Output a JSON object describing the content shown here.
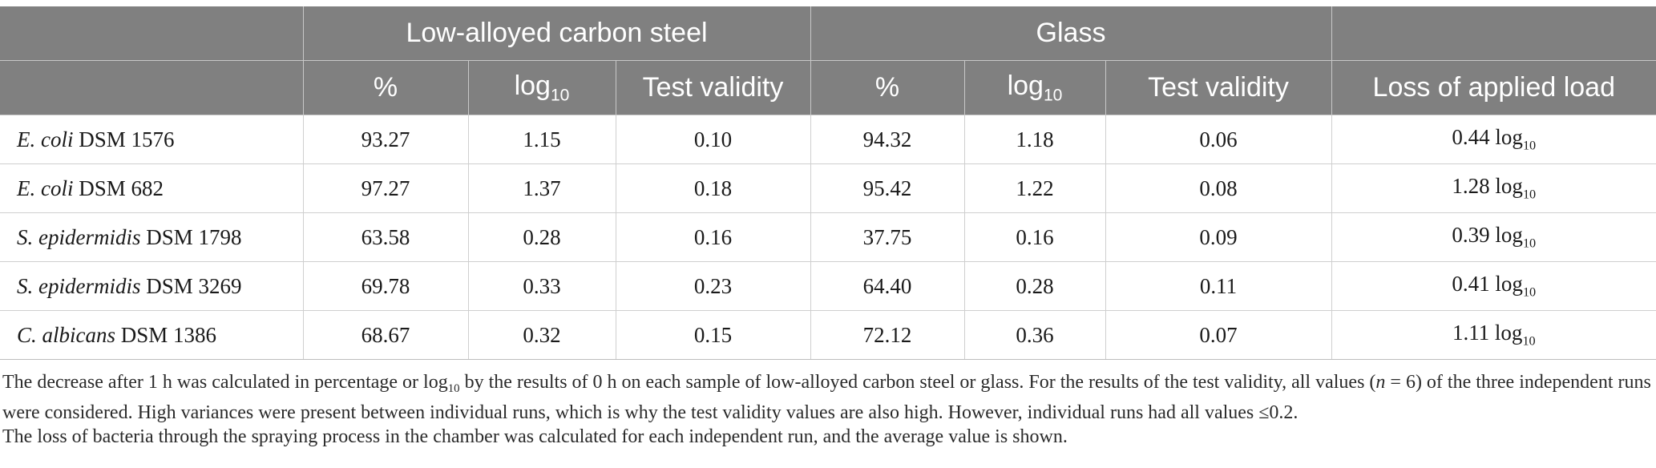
{
  "table": {
    "group_headers": [
      "",
      "Low-alloyed carbon steel",
      "Glass",
      ""
    ],
    "sub_headers": {
      "corner": "",
      "steel_percent": "%",
      "steel_log_base": "log",
      "steel_log_sub": "10",
      "steel_validity": "Test validity",
      "glass_percent": "%",
      "glass_log_base": "log",
      "glass_log_sub": "10",
      "glass_validity": "Test validity",
      "loss": "Loss of applied load"
    },
    "rows": [
      {
        "species": "E. coli",
        "strain": " DSM 1576",
        "steel_pct": "93.27",
        "steel_log": "1.15",
        "steel_tv": "0.10",
        "glass_pct": "94.32",
        "glass_log": "1.18",
        "glass_tv": "0.06",
        "loss_value": "0.44 log",
        "loss_sub": "10"
      },
      {
        "species": "E. coli",
        "strain": " DSM 682",
        "steel_pct": "97.27",
        "steel_log": "1.37",
        "steel_tv": "0.18",
        "glass_pct": "95.42",
        "glass_log": "1.22",
        "glass_tv": "0.08",
        "loss_value": "1.28 log",
        "loss_sub": "10"
      },
      {
        "species": "S. epidermidis",
        "strain": " DSM 1798",
        "steel_pct": "63.58",
        "steel_log": "0.28",
        "steel_tv": "0.16",
        "glass_pct": "37.75",
        "glass_log": "0.16",
        "glass_tv": "0.09",
        "loss_value": "0.39 log",
        "loss_sub": "10"
      },
      {
        "species": "S. epidermidis",
        "strain": " DSM 3269",
        "steel_pct": "69.78",
        "steel_log": "0.33",
        "steel_tv": "0.23",
        "glass_pct": "64.40",
        "glass_log": "0.28",
        "glass_tv": "0.11",
        "loss_value": "0.41 log",
        "loss_sub": "10"
      },
      {
        "species": "C. albicans",
        "strain": " DSM 1386",
        "steel_pct": "68.67",
        "steel_log": "0.32",
        "steel_tv": "0.15",
        "glass_pct": "72.12",
        "glass_log": "0.36",
        "glass_tv": "0.07",
        "loss_value": "1.11 log",
        "loss_sub": "10"
      }
    ]
  },
  "footnote": {
    "line1_pre": "The decrease after 1 h was calculated in percentage or log",
    "line1_sub": "10",
    "line1_post": " by the results of 0 h on each sample of low-alloyed carbon steel or glass. For the results of the test validity, all values (",
    "n_symbol": "n",
    "line1_tail": " = 6) of the three independent runs were considered. High variances were present between individual runs, which is why the test validity values are also high. However, individual runs had all values ≤0.2.",
    "line2": "The loss of bacteria through the spraying process in the chamber was calculated for each independent run, and the average value is shown."
  },
  "colors": {
    "header_bg": "#808080",
    "header_text": "#ffffff",
    "grid_lines": "#cfcfcf",
    "body_text": "#1a1a1a"
  }
}
